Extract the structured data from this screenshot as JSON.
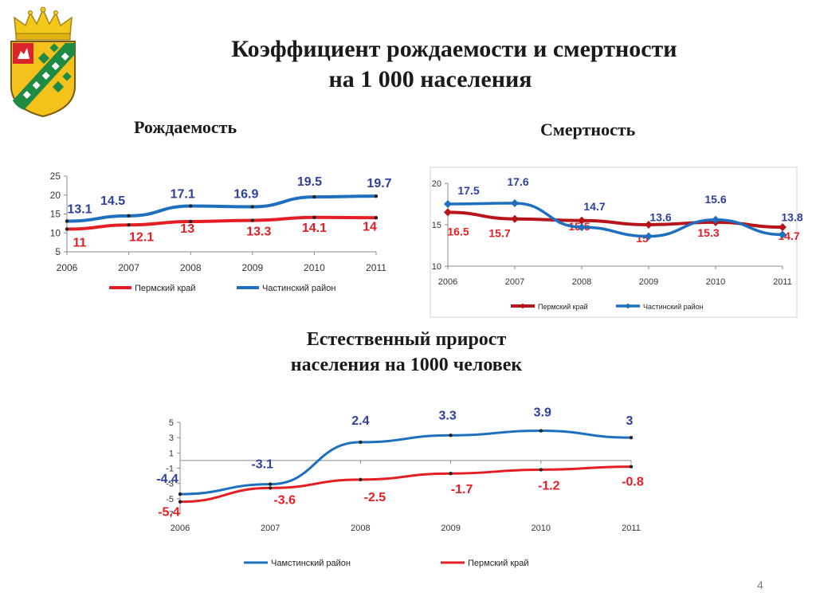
{
  "title_line1": "Коэффициент рождаемости и смертности",
  "title_line2": "на 1 000 населения",
  "page_number": "4",
  "colors": {
    "red": "#e31e24",
    "blue": "#1f6fbf",
    "darkred": "#b8141c",
    "label_blue": "#2e3f9e"
  },
  "chart_data": [
    {
      "type": "line",
      "title": "Рождаемость",
      "x": [
        "2006",
        "2007",
        "2008",
        "2009",
        "2010",
        "2011"
      ],
      "ylim": [
        5,
        25
      ],
      "yticks": [
        "5",
        "10",
        "15",
        "20",
        "25"
      ],
      "series": [
        {
          "name": "Пермский  край",
          "values": [
            11,
            12.1,
            13,
            13.3,
            14.1,
            14
          ],
          "labels": [
            "11",
            "12.1",
            "13",
            "13.3",
            "14.1",
            "14"
          ]
        },
        {
          "name": "Частинский район",
          "values": [
            13.1,
            14.5,
            17.1,
            16.9,
            19.5,
            19.7
          ],
          "labels": [
            "13.1",
            "14.5",
            "17.1",
            "16.9",
            "19.5",
            "19.7"
          ]
        }
      ]
    },
    {
      "type": "line",
      "title": "Смертность",
      "x": [
        "2006",
        "2007",
        "2008",
        "2009",
        "2010",
        "2011"
      ],
      "ylim": [
        10,
        20
      ],
      "yticks": [
        "10",
        "15",
        "20"
      ],
      "series": [
        {
          "name": "Пермский  край",
          "values": [
            16.5,
            15.7,
            15.5,
            15,
            15.3,
            14.7
          ],
          "labels": [
            "16.5",
            "15.7",
            "15.5",
            "15",
            "15.3",
            "14.7"
          ]
        },
        {
          "name": "Частинский район",
          "values": [
            17.5,
            17.6,
            14.7,
            13.6,
            15.6,
            13.8
          ],
          "labels": [
            "17.5",
            "17.6",
            "14.7",
            "13.6",
            "15.6",
            "13.8"
          ]
        }
      ]
    },
    {
      "type": "line",
      "title": "Естественный прирост населения на 1000 человек",
      "title_line1": "Естественный прирост",
      "title_line2": "населения на 1000 человек",
      "x": [
        "2006",
        "2007",
        "2008",
        "2009",
        "2010",
        "2011"
      ],
      "ylim": [
        -7,
        5
      ],
      "yticks": [
        "-7",
        "-5",
        "-3",
        "-1",
        "1",
        "3",
        "5"
      ],
      "series": [
        {
          "name": "Чамстинский район",
          "values": [
            -4.4,
            -3.1,
            2.4,
            3.3,
            3.9,
            3
          ],
          "labels": [
            "-4.4",
            "-3.1",
            "2.4",
            "3.3",
            "3.9",
            "3"
          ]
        },
        {
          "name": "Пермский край",
          "values": [
            -5.4,
            -3.6,
            -2.5,
            -1.7,
            -1.2,
            -0.8
          ],
          "labels": [
            "-5.4",
            "-3.6",
            "-2.5",
            "-1.7",
            "-1.2",
            "-0.8"
          ]
        }
      ]
    }
  ]
}
